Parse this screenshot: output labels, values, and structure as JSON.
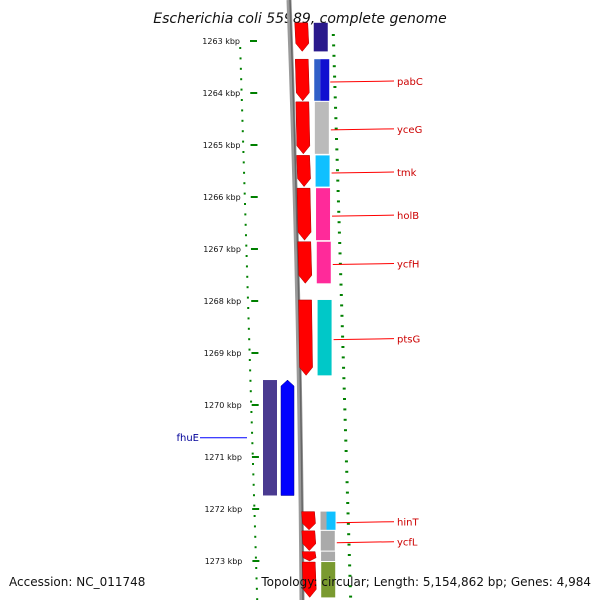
{
  "title": "Escherichia coli 55989, complete genome",
  "footer": {
    "accession": "Accession: NC_011748",
    "topology": "Topology: circular; Length: 5,154,862 bp; Genes: 4,984"
  },
  "colors": {
    "forward_cds": "#ff0000",
    "reverse_cds": "#0000ff",
    "backbone": "#808080",
    "tick": "#008000",
    "label_forward": "#cc0000",
    "label_reverse": "#000099"
  },
  "ticks": [
    {
      "kbp": 1263,
      "label": "1263 kbp"
    },
    {
      "kbp": 1264,
      "label": "1264 kbp"
    },
    {
      "kbp": 1265,
      "label": "1265 kbp"
    },
    {
      "kbp": 1266,
      "label": "1266 kbp"
    },
    {
      "kbp": 1267,
      "label": "1267 kbp"
    },
    {
      "kbp": 1268,
      "label": "1268 kbp"
    },
    {
      "kbp": 1269,
      "label": "1269 kbp"
    },
    {
      "kbp": 1270,
      "label": "1270 kbp"
    },
    {
      "kbp": 1271,
      "label": "1271 kbp"
    },
    {
      "kbp": 1272,
      "label": "1272 kbp"
    },
    {
      "kbp": 1273,
      "label": "1273 kbp"
    }
  ],
  "forward_genes": [
    {
      "start_kbp": 1262.65,
      "end_kbp": 1263.2,
      "cog_color": "#2a1a8c"
    },
    {
      "name": "pabC",
      "start_kbp": 1263.35,
      "end_kbp": 1264.15,
      "cog_color": "#1010d0",
      "cog_color2": "#3060c8"
    },
    {
      "name": "yceG",
      "start_kbp": 1264.17,
      "end_kbp": 1265.17,
      "cog_color": "#bbbbbb"
    },
    {
      "name": "tmk",
      "start_kbp": 1265.2,
      "end_kbp": 1265.8,
      "cog_color": "#10c0ff"
    },
    {
      "name": "holB",
      "start_kbp": 1265.83,
      "end_kbp": 1266.83,
      "cog_color": "#ff2a9a"
    },
    {
      "name": "ycfH",
      "start_kbp": 1266.86,
      "end_kbp": 1267.66,
      "cog_color": "#ff2a9a"
    },
    {
      "name": "ptsG",
      "start_kbp": 1267.98,
      "end_kbp": 1269.43,
      "cog_color": "#00c8c8"
    },
    {
      "name": "hinT",
      "start_kbp": 1272.05,
      "end_kbp": 1272.4,
      "cog_color": "#10c0ff",
      "cog_color2": "#aaaaaa"
    },
    {
      "name": "ycfL",
      "start_kbp": 1272.42,
      "end_kbp": 1272.8,
      "cog_color": "#aaaaaa"
    },
    {
      "start_kbp": 1272.82,
      "end_kbp": 1273.0,
      "cog_color": "#aaaaaa"
    },
    {
      "start_kbp": 1273.02,
      "end_kbp": 1273.7,
      "cog_color": "#7a9a30"
    }
  ],
  "reverse_genes": [
    {
      "name": "fhuE",
      "start_kbp": 1269.52,
      "end_kbp": 1271.74,
      "cog_color": "#4a3a90"
    }
  ]
}
